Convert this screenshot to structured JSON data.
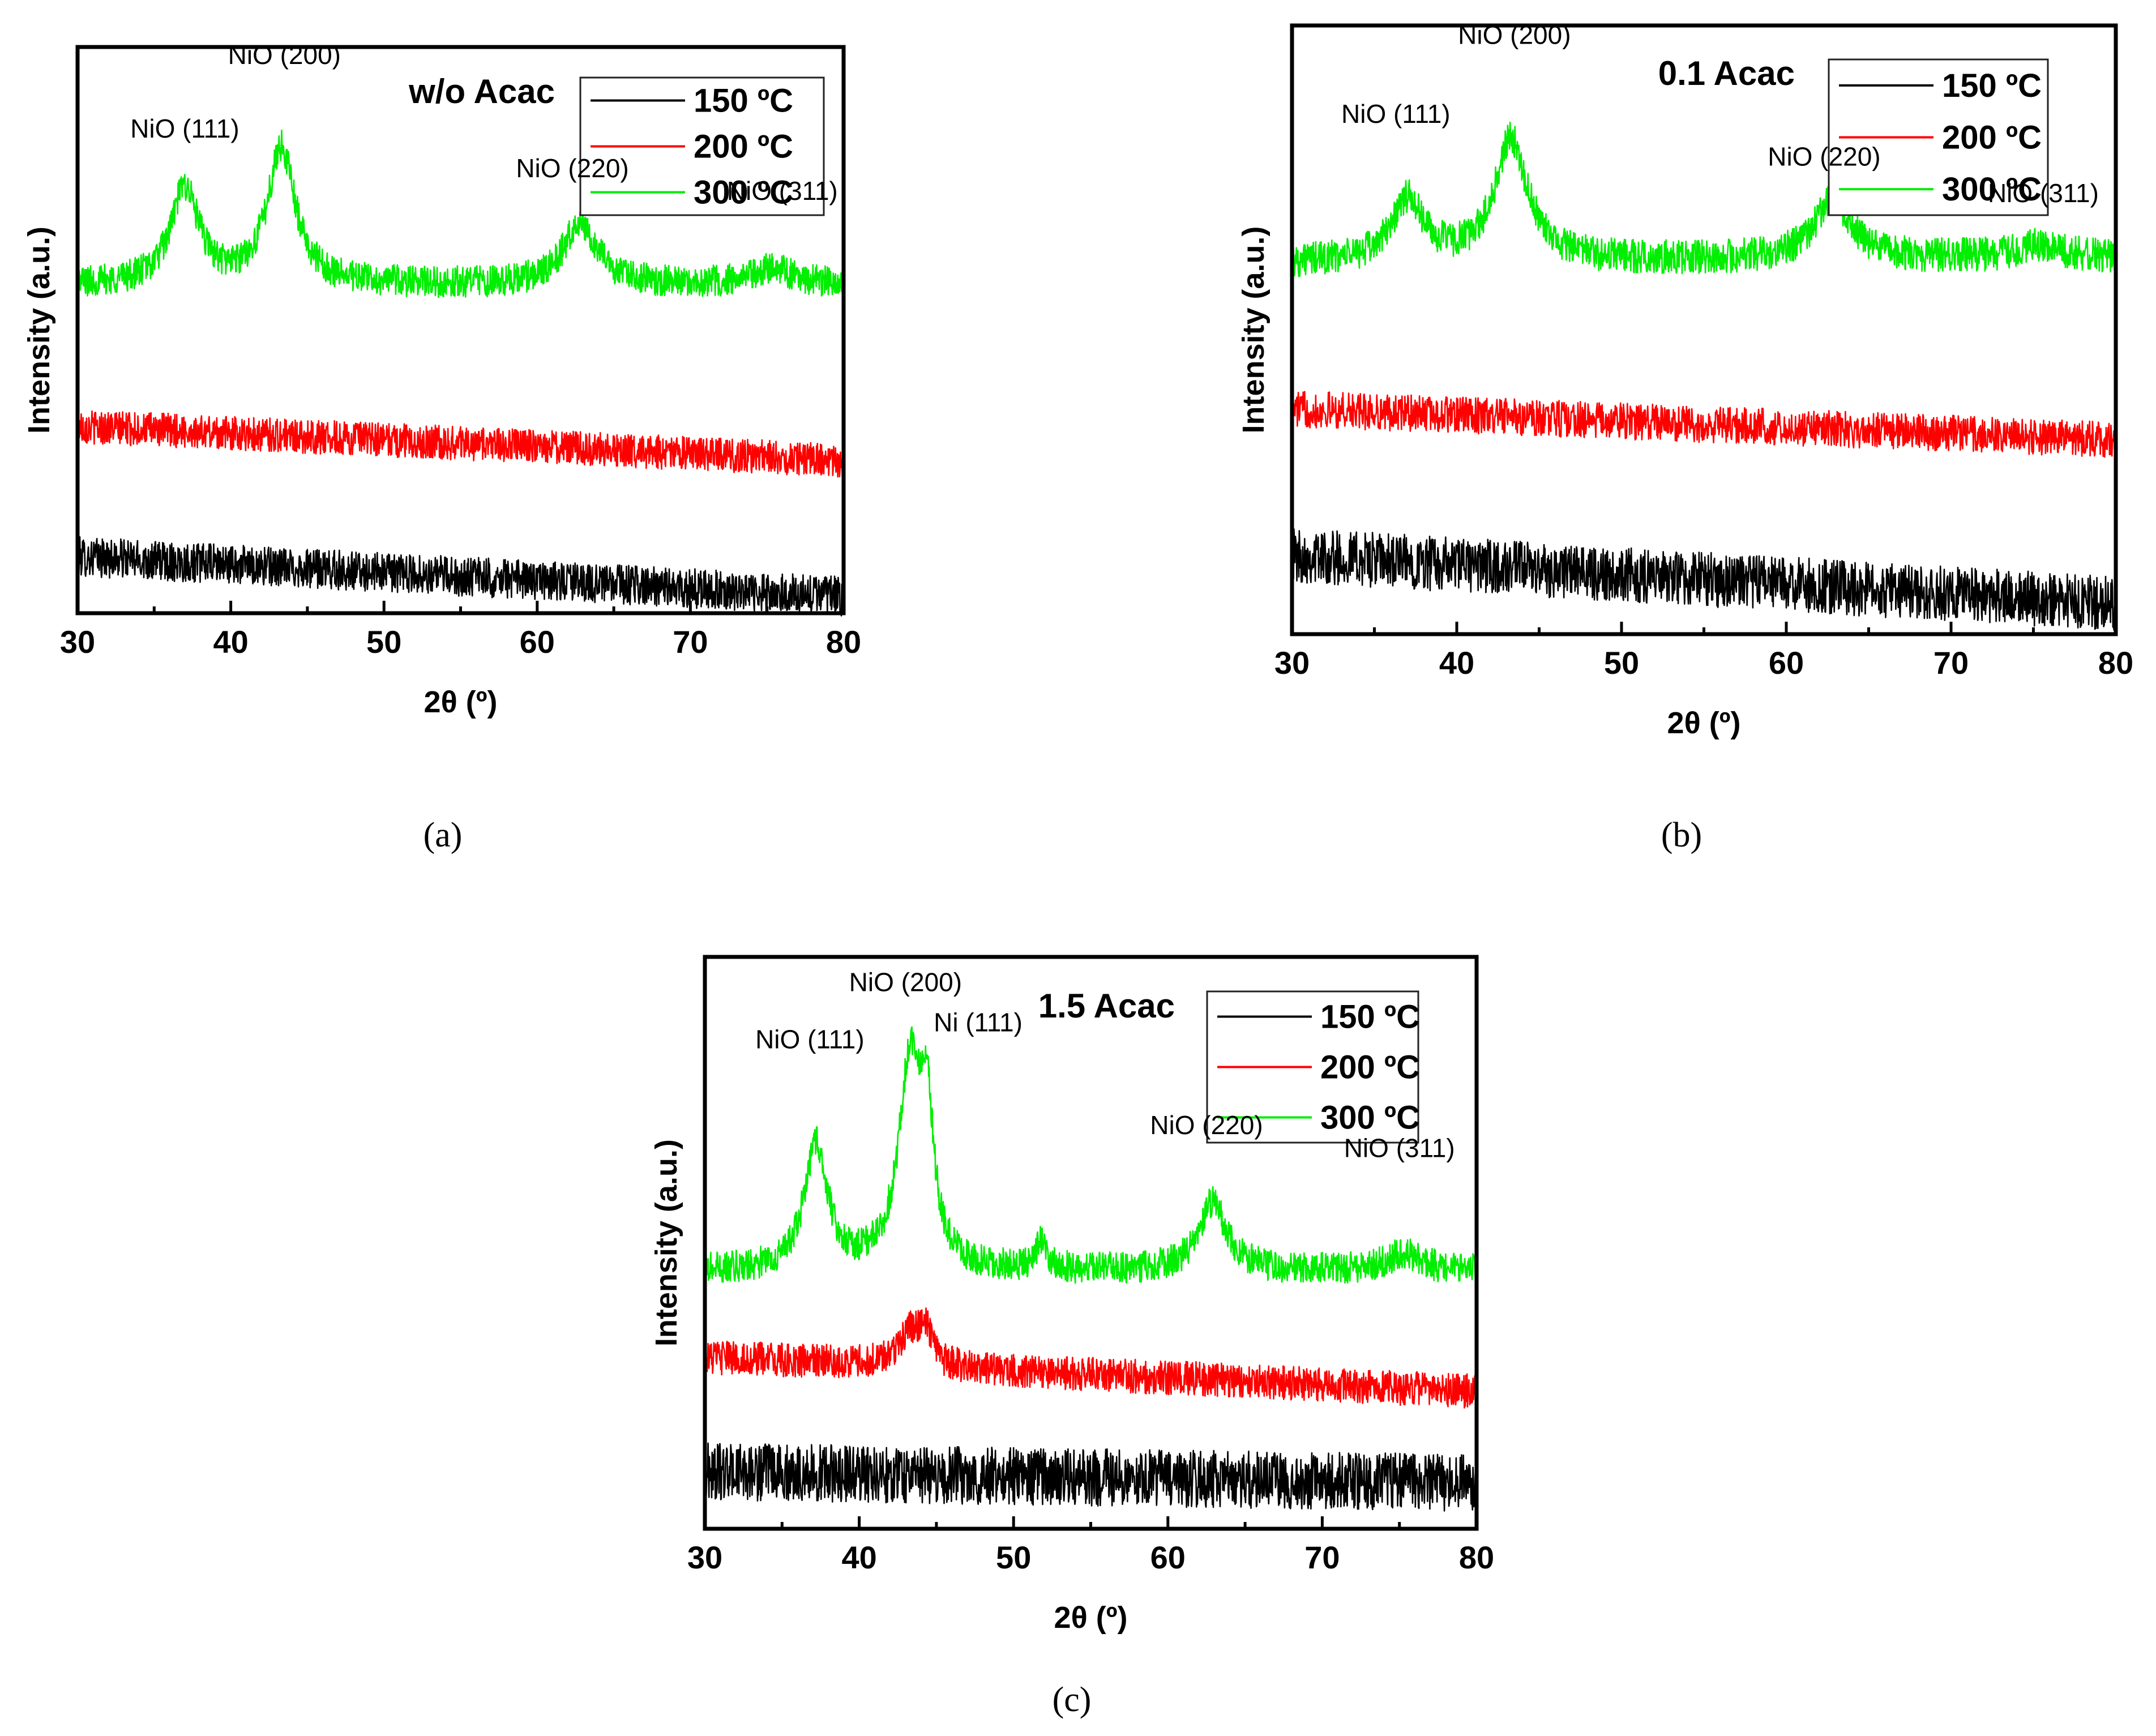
{
  "figure_captions": [
    "(a)",
    "(b)",
    "(c)"
  ],
  "chart_data": [
    {
      "id": "a",
      "type": "line",
      "title": "w/o Acac",
      "caption": "(a)",
      "xlabel": "2θ (º)",
      "ylabel": "Intensity (a.u.)",
      "xlim": [
        30,
        80
      ],
      "xticks": [
        30,
        40,
        50,
        60,
        70,
        80
      ],
      "yticks_shown": false,
      "legend_position": "top-right",
      "series": [
        {
          "name": "150 ºC",
          "color": "#000000",
          "base": 0.1,
          "slope": -0.07,
          "noise": 0.035,
          "peaks": []
        },
        {
          "name": "200 ºC",
          "color": "#ff0000",
          "base": 0.33,
          "slope": -0.06,
          "noise": 0.03,
          "peaks": []
        },
        {
          "name": "300 ºC",
          "color": "#00ee00",
          "base": 0.58,
          "slope": 0.0,
          "noise": 0.028,
          "peaks": [
            {
              "x": 37.0,
              "h": 0.17,
              "w": 1.1
            },
            {
              "x": 43.3,
              "h": 0.24,
              "w": 1.1
            },
            {
              "x": 62.8,
              "h": 0.11,
              "w": 1.3
            },
            {
              "x": 75.3,
              "h": 0.03,
              "w": 1.5
            }
          ]
        }
      ],
      "annotations": [
        {
          "text": "NiO (111)",
          "x": 37.0,
          "level": 0.84
        },
        {
          "text": "NiO (200)",
          "x": 43.5,
          "level": 0.97
        },
        {
          "text": "NiO (220)",
          "x": 62.3,
          "level": 0.77
        },
        {
          "text": "NiO (311)",
          "x": 76.0,
          "level": 0.73
        }
      ]
    },
    {
      "id": "b",
      "type": "line",
      "title": "0.1 Acac",
      "caption": "(b)",
      "xlabel": "2θ (º)",
      "ylabel": "Intensity (a.u.)",
      "xlim": [
        30,
        80
      ],
      "xticks": [
        30,
        40,
        50,
        60,
        70,
        80
      ],
      "yticks_shown": false,
      "legend_position": "top-right",
      "series": [
        {
          "name": "150 ºC",
          "color": "#000000",
          "base": 0.13,
          "slope": -0.08,
          "noise": 0.045,
          "peaks": []
        },
        {
          "name": "200 ºC",
          "color": "#ff0000",
          "base": 0.37,
          "slope": -0.05,
          "noise": 0.03,
          "peaks": []
        },
        {
          "name": "300 ºC",
          "color": "#00ee00",
          "base": 0.61,
          "slope": 0.01,
          "noise": 0.028,
          "peaks": [
            {
              "x": 37.0,
              "h": 0.1,
              "w": 1.2
            },
            {
              "x": 43.3,
              "h": 0.2,
              "w": 1.2
            },
            {
              "x": 62.8,
              "h": 0.1,
              "w": 1.3
            },
            {
              "x": 75.3,
              "h": 0.02,
              "w": 1.5
            }
          ]
        }
      ],
      "annotations": [
        {
          "text": "NiO (111)",
          "x": 36.3,
          "level": 0.84
        },
        {
          "text": "NiO (200)",
          "x": 43.5,
          "level": 0.97
        },
        {
          "text": "NiO (220)",
          "x": 62.3,
          "level": 0.77
        },
        {
          "text": "NiO (311)",
          "x": 75.6,
          "level": 0.71
        }
      ]
    },
    {
      "id": "c",
      "type": "line",
      "title": "1.5 Acac",
      "caption": "(c)",
      "xlabel": "2θ (º)",
      "ylabel": "Intensity (a.u.)",
      "xlim": [
        30,
        80
      ],
      "xticks": [
        30,
        40,
        50,
        60,
        70,
        80
      ],
      "yticks_shown": false,
      "legend_position": "top-right",
      "series": [
        {
          "name": "150 ºC",
          "color": "#000000",
          "base": 0.1,
          "slope": -0.02,
          "noise": 0.05,
          "peaks": []
        },
        {
          "name": "200 ºC",
          "color": "#ff0000",
          "base": 0.3,
          "slope": -0.06,
          "noise": 0.03,
          "peaks": [
            {
              "x": 43.3,
              "h": 0.06,
              "w": 0.9
            },
            {
              "x": 44.3,
              "h": 0.05,
              "w": 0.5
            }
          ]
        },
        {
          "name": "300 ºC",
          "color": "#00ee00",
          "base": 0.45,
          "slope": 0.0,
          "noise": 0.028,
          "peaks": [
            {
              "x": 37.2,
              "h": 0.22,
              "w": 0.9
            },
            {
              "x": 43.3,
              "h": 0.36,
              "w": 0.9
            },
            {
              "x": 44.4,
              "h": 0.22,
              "w": 0.5
            },
            {
              "x": 51.8,
              "h": 0.05,
              "w": 0.4
            },
            {
              "x": 62.9,
              "h": 0.12,
              "w": 1.1
            },
            {
              "x": 75.3,
              "h": 0.03,
              "w": 1.4
            }
          ]
        }
      ],
      "annotations": [
        {
          "text": "NiO (111)",
          "x": 36.8,
          "level": 0.84
        },
        {
          "text": "NiO (200)",
          "x": 43.0,
          "level": 0.94
        },
        {
          "text": "Ni (111)",
          "x": 47.7,
          "level": 0.87
        },
        {
          "text": "NiO (220)",
          "x": 62.5,
          "level": 0.69
        },
        {
          "text": "NiO (311)",
          "x": 75.0,
          "level": 0.65
        }
      ]
    }
  ]
}
